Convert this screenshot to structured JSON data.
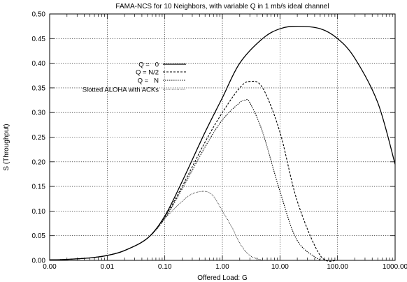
{
  "chart_data": {
    "type": "line",
    "title": "FAMA-NCS for 10 Neighbors, with variable Q in 1 mb/s ideal channel",
    "xlabel": "Offered Load: G",
    "ylabel": "S (Throughput)",
    "x_scale": "log",
    "x_ticks": [
      {
        "value": 0.001,
        "label": "0.00"
      },
      {
        "value": 0.01,
        "label": "0.01"
      },
      {
        "value": 0.1,
        "label": "0.10"
      },
      {
        "value": 1,
        "label": "1.00"
      },
      {
        "value": 10,
        "label": "10.00"
      },
      {
        "value": 100,
        "label": "100.00"
      },
      {
        "value": 1000,
        "label": "1000.00"
      }
    ],
    "xlim": [
      0.001,
      1000
    ],
    "ylim": [
      0,
      0.5
    ],
    "y_ticks": [
      "0.00",
      "0.05",
      "0.10",
      "0.15",
      "0.20",
      "0.25",
      "0.30",
      "0.35",
      "0.40",
      "0.45",
      "0.50"
    ],
    "grid": true,
    "legend_position": "upper-left-center",
    "series": [
      {
        "name": "Q =   0",
        "style": "solid",
        "x": [
          0.001,
          0.002,
          0.005,
          0.01,
          0.02,
          0.05,
          0.1,
          0.2,
          0.5,
          1,
          2,
          5,
          10,
          20,
          50,
          100,
          200,
          500,
          1000
        ],
        "y": [
          0.001,
          0.002,
          0.005,
          0.01,
          0.02,
          0.045,
          0.09,
          0.16,
          0.26,
          0.33,
          0.4,
          0.45,
          0.47,
          0.475,
          0.47,
          0.45,
          0.41,
          0.32,
          0.195
        ]
      },
      {
        "name": "Q = N/2",
        "style": "dashed",
        "x": [
          0.001,
          0.002,
          0.005,
          0.01,
          0.02,
          0.05,
          0.1,
          0.2,
          0.5,
          1,
          2,
          3,
          5,
          10,
          20,
          50,
          100
        ],
        "y": [
          0.001,
          0.002,
          0.005,
          0.01,
          0.02,
          0.045,
          0.088,
          0.15,
          0.24,
          0.3,
          0.35,
          0.363,
          0.35,
          0.26,
          0.12,
          0.01,
          0.0
        ]
      },
      {
        "name": "Q =   N",
        "style": "dotted",
        "x": [
          0.001,
          0.002,
          0.005,
          0.01,
          0.02,
          0.05,
          0.1,
          0.2,
          0.5,
          1,
          2,
          2.5,
          3,
          5,
          10,
          20,
          50
        ],
        "y": [
          0.001,
          0.002,
          0.005,
          0.01,
          0.02,
          0.045,
          0.085,
          0.145,
          0.23,
          0.285,
          0.32,
          0.325,
          0.32,
          0.26,
          0.14,
          0.04,
          0.0
        ]
      },
      {
        "name": "Slotted ALOHA with ACKs",
        "style": "dotted-fine",
        "x": [
          0.001,
          0.002,
          0.005,
          0.01,
          0.02,
          0.05,
          0.1,
          0.2,
          0.3,
          0.5,
          0.7,
          1,
          1.5,
          2,
          3,
          5
        ],
        "y": [
          0.001,
          0.002,
          0.005,
          0.01,
          0.02,
          0.045,
          0.085,
          0.12,
          0.135,
          0.14,
          0.13,
          0.1,
          0.065,
          0.035,
          0.01,
          0.0
        ]
      }
    ]
  }
}
